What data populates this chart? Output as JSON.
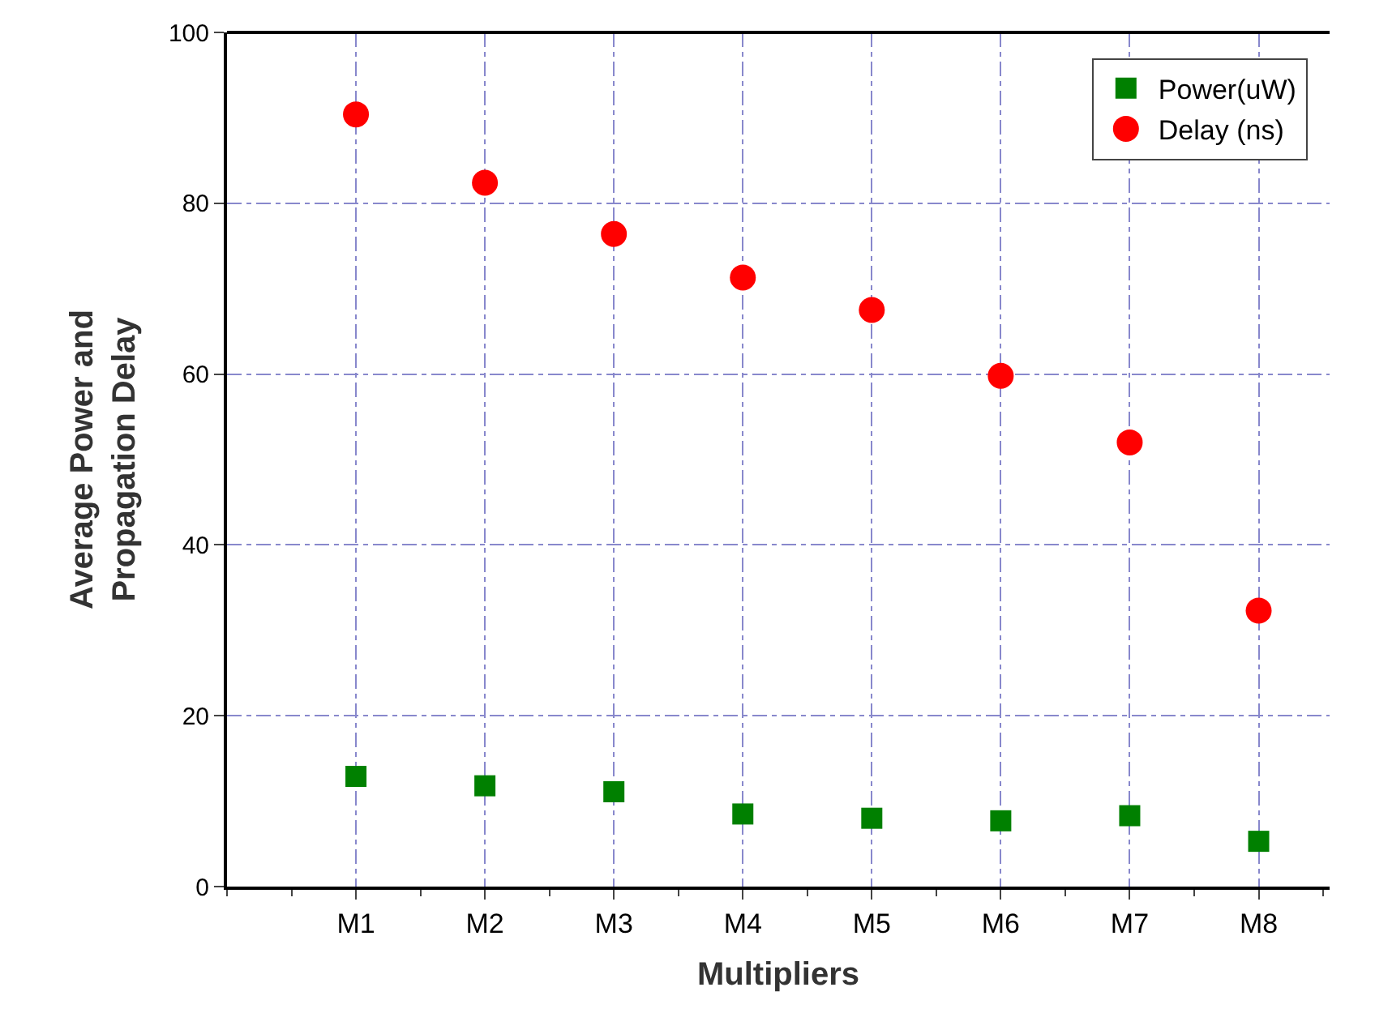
{
  "chart_data": {
    "type": "scatter",
    "xlabel": "Multipliers",
    "ylabel": "Average Power and\nPropagation Delay",
    "categories": [
      "M1",
      "M2",
      "M3",
      "M4",
      "M5",
      "M6",
      "M7",
      "M8"
    ],
    "series": [
      {
        "name": "Power(uW)",
        "color": "#008000",
        "marker": "square",
        "values": [
          12.9,
          11.8,
          11.1,
          8.5,
          8.0,
          7.7,
          8.3,
          5.3
        ]
      },
      {
        "name": "Delay (ns)",
        "color": "#ff0000",
        "marker": "circle",
        "values": [
          90.4,
          82.4,
          76.4,
          71.3,
          67.5,
          59.8,
          52.0,
          32.3
        ]
      }
    ],
    "ylim": [
      0,
      100
    ],
    "yticks": [
      0,
      20,
      40,
      60,
      80,
      100
    ],
    "grid": true,
    "legend": "top right"
  }
}
